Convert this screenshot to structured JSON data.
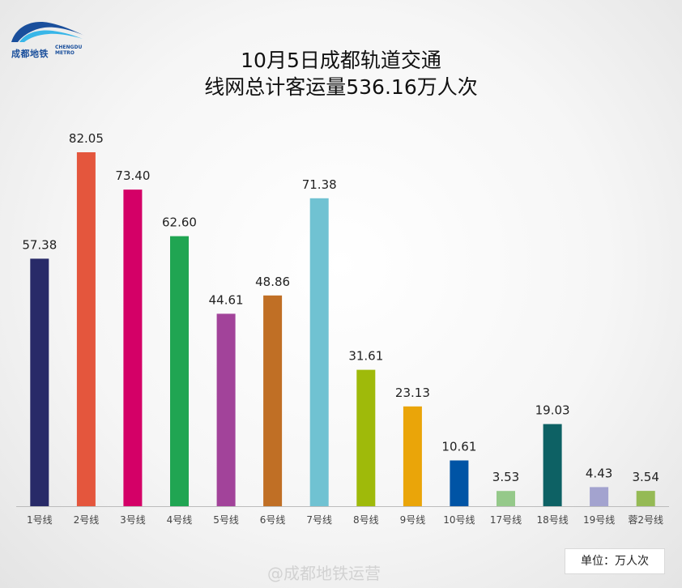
{
  "brand": {
    "logo_text_cn": "成都地铁",
    "logo_text_en": "CHENGDU METRO",
    "logo_color": "#1a4f9c"
  },
  "unit_label": "单位：万人次",
  "watermark": "@成都地铁运营",
  "chart_data": {
    "type": "bar",
    "title": "10月5日成都轨道交通",
    "subtitle": "线网总计客运量536.16万人次",
    "xlabel": "",
    "ylabel": "",
    "ylim": [
      0,
      90
    ],
    "grid": false,
    "categories": [
      "1号线",
      "2号线",
      "3号线",
      "4号线",
      "5号线",
      "6号线",
      "7号线",
      "8号线",
      "9号线",
      "10号线",
      "17号线",
      "18号线",
      "19号线",
      "蓉2号线"
    ],
    "values": [
      57.38,
      82.05,
      73.4,
      62.6,
      44.61,
      48.86,
      71.38,
      31.61,
      23.13,
      10.61,
      3.53,
      19.03,
      4.43,
      3.54
    ],
    "value_labels": [
      "57.38",
      "82.05",
      "73.40",
      "62.60",
      "44.61",
      "48.86",
      "71.38",
      "31.61",
      "23.13",
      "10.61",
      "3.53",
      "19.03",
      "4.43",
      "3.54"
    ],
    "colors": [
      "#282a68",
      "#e4563d",
      "#d40067",
      "#20a552",
      "#a2439a",
      "#c06f25",
      "#70c2d2",
      "#9fba0a",
      "#eaa509",
      "#0054a5",
      "#95c98a",
      "#0d6164",
      "#a3a3cf",
      "#95ba55"
    ]
  }
}
